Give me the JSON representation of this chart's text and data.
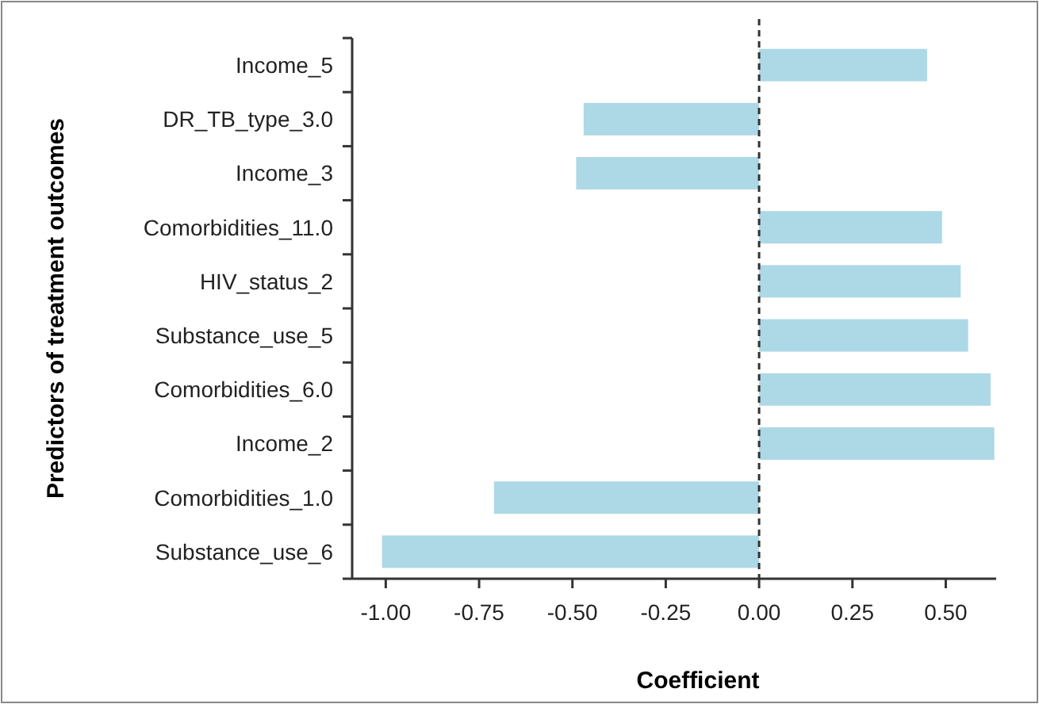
{
  "chart_data": {
    "type": "bar",
    "orientation": "horizontal",
    "xlabel": "Coefficient",
    "ylabel": "Predictors of treatment outcomes",
    "categories": [
      "Income_5",
      "DR_TB_type_3.0",
      "Income_3",
      "Comorbidities_11.0",
      "HIV_status_2",
      "Substance_use_5",
      "Comorbidities_6.0",
      "Income_2",
      "Comorbidities_1.0",
      "Substance_use_6"
    ],
    "values": [
      0.45,
      -0.47,
      -0.49,
      0.49,
      0.54,
      0.56,
      0.62,
      0.63,
      -0.71,
      -1.01
    ],
    "color": "#add8e6",
    "xlim": [
      -1.09,
      0.635
    ],
    "xticks": [
      {
        "value": -1,
        "label": "-1.00"
      },
      {
        "value": -0.75,
        "label": "-0.75"
      },
      {
        "value": -0.5,
        "label": "-0.50"
      },
      {
        "value": -0.25,
        "label": "-0.25"
      },
      {
        "value": 0,
        "label": "0.00"
      },
      {
        "value": 0.25,
        "label": "0.25"
      },
      {
        "value": 0.5,
        "label": "0.50"
      }
    ],
    "ref_lines": [
      {
        "axis": "x",
        "value": 0,
        "label": null,
        "color": "#333333",
        "line_style": "dashed"
      }
    ],
    "grid": false
  }
}
